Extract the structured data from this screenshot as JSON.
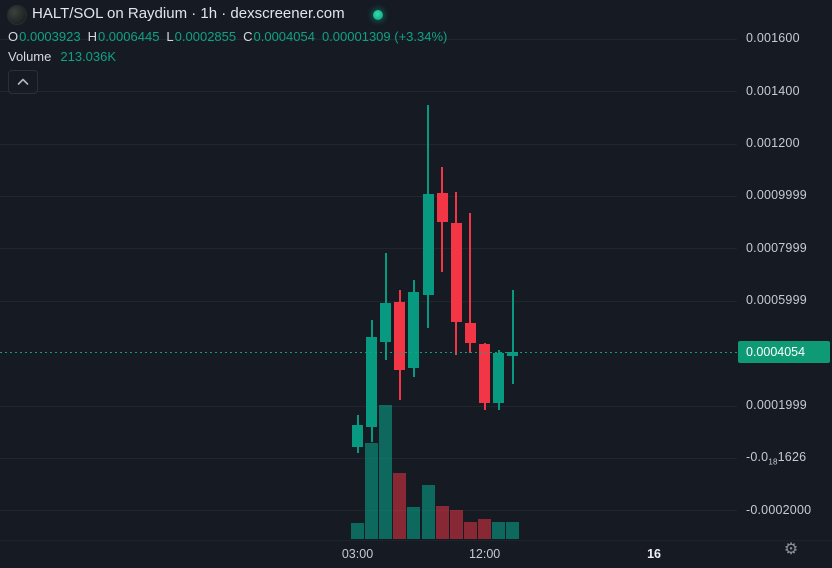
{
  "colors": {
    "background": "#151a23",
    "up": "#089981",
    "down": "#f23645",
    "up_volume": "rgba(8,153,129,0.62)",
    "down_volume": "rgba(242,54,69,0.52)",
    "accent_text_green": "#10a184",
    "badge_bg": "#0f9a76",
    "axis_text": "#c6cad2"
  },
  "header": {
    "title": "HALT/SOL on Raydium · 1h · dexscreener.com",
    "logo_icon": "halt-token-logo",
    "live_icon": "live-indicator-dot"
  },
  "legend": {
    "open_label": "O",
    "open": "0.0003923",
    "high_label": "H",
    "high": "0.0006445",
    "low_label": "L",
    "low": "0.0002855",
    "close_label": "C",
    "close": "0.0004054",
    "change": "0.00001309 (+3.34%)",
    "volume_label": "Volume",
    "volume_value": "213.036K"
  },
  "price_badge": {
    "text": "0.0004054"
  },
  "icons": {
    "gear": "⚙",
    "chevron_up": "chevron-up",
    "live_dot": "●"
  },
  "chart_data": {
    "type": "candlestick",
    "title": "HALT/SOL on Raydium 1h",
    "interval": "1h",
    "grid": "horizontal-only",
    "legend_position": "top-left",
    "ylim": [
      -0.00031,
      0.00175
    ],
    "last_price": 0.0004054,
    "candles": [
      {
        "t": "03:00",
        "o": 4.35e-05,
        "h": 0.0001657,
        "l": 2.06e-05,
        "c": 0.0001275,
        "dir": "up"
      },
      {
        "t": "04:00",
        "o": 0.0001199,
        "h": 0.0005283,
        "l": 6.26e-05,
        "c": 0.0004634,
        "dir": "up"
      },
      {
        "t": "05:00",
        "o": 0.0004443,
        "h": 0.000784,
        "l": 0.0003756,
        "c": 0.0005931,
        "dir": "up"
      },
      {
        "t": "06:00",
        "o": 0.000597,
        "h": 0.0006428,
        "l": 0.0002229,
        "c": 0.0003374,
        "dir": "down"
      },
      {
        "t": "07:00",
        "o": 0.0003451,
        "h": 0.000681,
        "l": 0.0003107,
        "c": 0.0006352,
        "dir": "up"
      },
      {
        "t": "08:00",
        "o": 0.0006237,
        "h": 0.0013489,
        "l": 0.0004977,
        "c": 0.0010092,
        "dir": "up"
      },
      {
        "t": "09:00",
        "o": 0.001013,
        "h": 0.0011123,
        "l": 0.0007115,
        "c": 0.0009023,
        "dir": "down"
      },
      {
        "t": "10:00",
        "o": 0.0008985,
        "h": 0.0010168,
        "l": 0.0003947,
        "c": 0.0005206,
        "dir": "down"
      },
      {
        "t": "11:00",
        "o": 0.0005168,
        "h": 0.0009367,
        "l": 0.0004023,
        "c": 0.0004405,
        "dir": "down"
      },
      {
        "t": "12:00",
        "o": 0.0004366,
        "h": 0.0004405,
        "l": 0.0001847,
        "c": 0.0002114,
        "dir": "down"
      },
      {
        "t": "13:00",
        "o": 0.0002114,
        "h": 0.0004137,
        "l": 0.0001847,
        "c": 0.0004023,
        "dir": "up"
      },
      {
        "t": "14:00",
        "o": 0.0003923,
        "h": 0.0006445,
        "l": 0.0002855,
        "c": 0.0004054,
        "dir": "up"
      }
    ],
    "volume_rel": [
      0.12,
      0.72,
      1.0,
      0.49,
      0.24,
      0.4,
      0.25,
      0.22,
      0.13,
      0.15,
      0.13,
      0.13
    ],
    "volume_last_display": "213.036K",
    "y_ticks": [
      {
        "text": "0.001600",
        "price": 0.0016
      },
      {
        "text": "0.001400",
        "price": 0.0014
      },
      {
        "text": "0.001200",
        "price": 0.0012
      },
      {
        "text": "0.0009999",
        "price": 0.0009999
      },
      {
        "text": "0.0007999",
        "price": 0.0007999
      },
      {
        "text": "0.0005999",
        "price": 0.0005999
      },
      {
        "text": "0.0001999",
        "price": 0.0001999
      },
      {
        "prefix": "-0.0",
        "sub": "18",
        "rest": "1626",
        "price": 0
      },
      {
        "text": "-0.0002000",
        "price": -0.0002
      }
    ],
    "x_ticks": [
      {
        "text": "03:00",
        "slot": 0,
        "bold": false
      },
      {
        "text": "12:00",
        "slot": 9,
        "bold": false
      },
      {
        "text": "16",
        "slot": 21,
        "bold": true
      }
    ]
  }
}
